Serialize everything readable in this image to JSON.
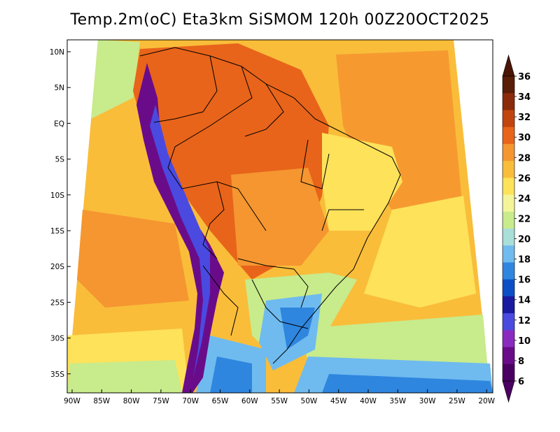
{
  "title": "Temp.2m(oC) Eta3km SiSMOM 120h 00Z20OCT2025",
  "lat_labels": [
    "10N",
    "5N",
    "EQ",
    "5S",
    "10S",
    "15S",
    "20S",
    "25S",
    "30S",
    "35S"
  ],
  "lon_labels": [
    "90W",
    "85W",
    "80W",
    "75W",
    "70W",
    "65W",
    "60W",
    "55W",
    "50W",
    "45W",
    "40W",
    "35W",
    "30W",
    "25W",
    "20W"
  ],
  "colorbar": {
    "unit": "oC",
    "labels": [
      "36",
      "34",
      "32",
      "30",
      "28",
      "26",
      "24",
      "22",
      "20",
      "18",
      "16",
      "14",
      "12",
      "10",
      "8",
      "6"
    ],
    "colors": [
      "#5a1d08",
      "#8b2a0b",
      "#c2440f",
      "#e8641a",
      "#f59630",
      "#f9bd3a",
      "#fde25a",
      "#f4f59a",
      "#c8eb8c",
      "#a9ded9",
      "#6fbbef",
      "#2f86df",
      "#0b4fc7",
      "#1a1aa1",
      "#4a4ae0",
      "#8a2bc0",
      "#6a0c8a",
      "#4a0060"
    ],
    "top_arrow_color": "#4a1505",
    "bottom_arrow_color": "#4a0060"
  },
  "map_colors": {
    "ocean_warm": "#f9bd3a",
    "ocean_hot": "#f59630",
    "land_hot": "#e8641a",
    "andes": "#6a0c8a",
    "south_cold": "#6fbbef",
    "south_coast": "#a9ded9",
    "north_pacific": "#c8eb8c"
  }
}
